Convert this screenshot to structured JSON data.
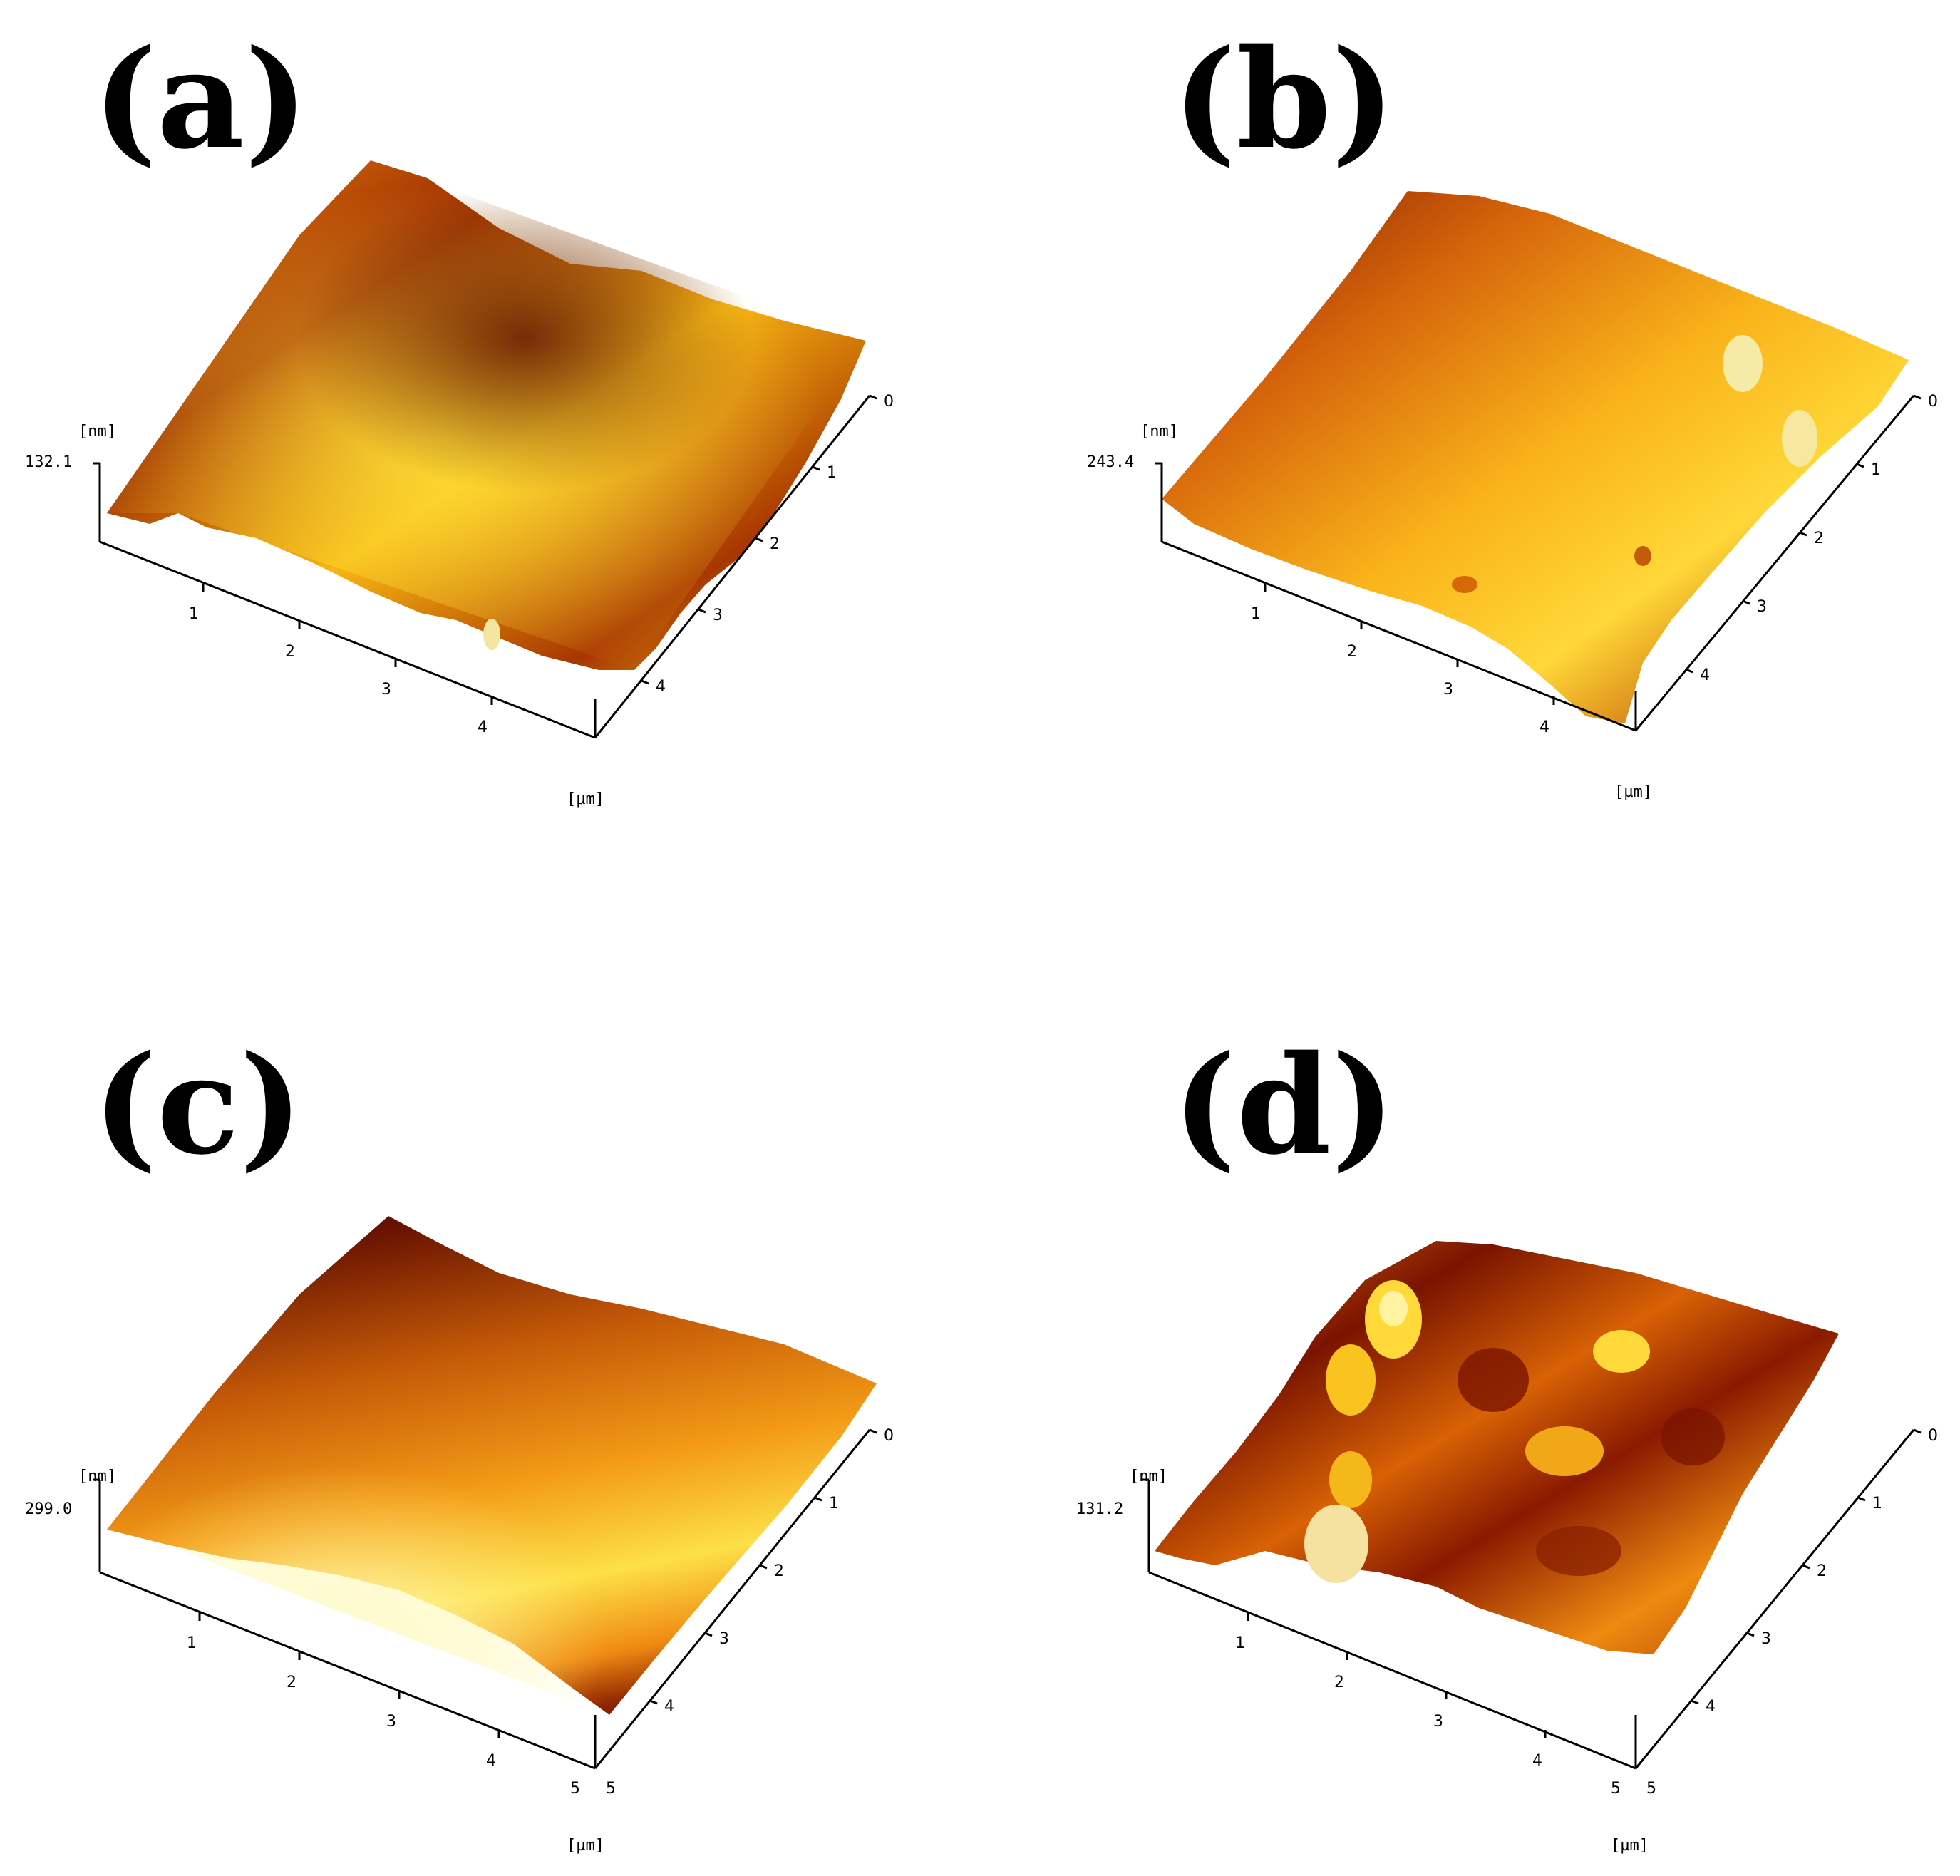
{
  "panels": [
    {
      "label": "(a)",
      "z_unit": "[nm]",
      "z_max": "132.1",
      "xy_unit": "[µm]",
      "x_ticks": [
        "1",
        "2",
        "3",
        "4"
      ],
      "y_ticks": [
        "0",
        "1",
        "2",
        "3",
        "4"
      ],
      "roughness": "high",
      "colors": {
        "dark": "#6a1200",
        "mid": "#d86a08",
        "light": "#ffd21a"
      }
    },
    {
      "label": "(b)",
      "z_unit": "[nm]",
      "z_max": "243.4",
      "xy_unit": "[µm]",
      "x_ticks": [
        "1",
        "2",
        "3",
        "4"
      ],
      "y_ticks": [
        "0",
        "1",
        "2",
        "3",
        "4"
      ],
      "roughness": "low",
      "colors": {
        "dark": "#6a1200",
        "mid": "#ee8a12",
        "light": "#ffe042"
      }
    },
    {
      "label": "(c)",
      "z_unit": "[nm]",
      "z_max": "299.0",
      "xy_unit": "[µm]",
      "x_ticks": [
        "1",
        "2",
        "3",
        "4",
        "5"
      ],
      "y_ticks": [
        "0",
        "1",
        "2",
        "3",
        "4",
        "5"
      ],
      "roughness": "very-low",
      "colors": {
        "dark": "#5a0800",
        "mid": "#e97a0a",
        "light": "#fff27a"
      }
    },
    {
      "label": "(d)",
      "z_unit": "[nm]",
      "z_max": "131.2",
      "xy_unit": "[µm]",
      "x_ticks": [
        "1",
        "2",
        "3",
        "4",
        "5"
      ],
      "y_ticks": [
        "0",
        "1",
        "2",
        "3",
        "4",
        "5"
      ],
      "roughness": "blobby",
      "colors": {
        "dark": "#5c0c00",
        "mid": "#d86205",
        "light": "#ffd83a"
      }
    }
  ]
}
